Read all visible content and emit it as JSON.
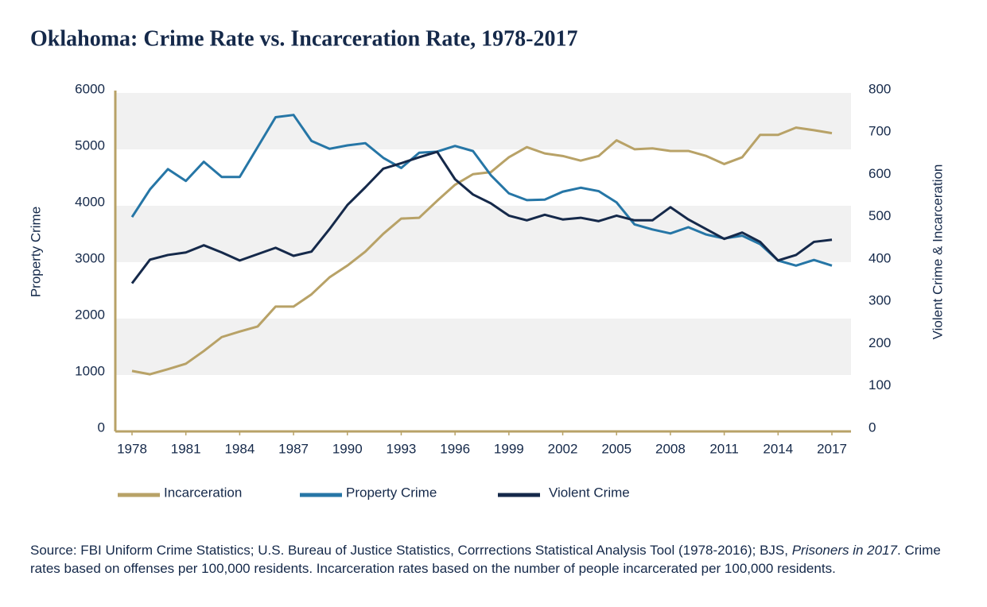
{
  "chart_data": {
    "type": "line",
    "title": "Oklahoma: Crime Rate vs. Incarceration Rate, 1978-2017",
    "y_label": "Property Crime",
    "y2_label": "Violent Crime & Incarceration",
    "x": [
      1978,
      1979,
      1980,
      1981,
      1982,
      1983,
      1984,
      1985,
      1986,
      1987,
      1988,
      1989,
      1990,
      1991,
      1992,
      1993,
      1994,
      1995,
      1996,
      1997,
      1998,
      1999,
      2000,
      2001,
      2002,
      2003,
      2004,
      2005,
      2006,
      2007,
      2008,
      2009,
      2010,
      2011,
      2012,
      2013,
      2014,
      2015,
      2016,
      2017
    ],
    "xlim": [
      1978,
      2017
    ],
    "xticks": [
      1978,
      1981,
      1984,
      1987,
      1990,
      1993,
      1996,
      1999,
      2002,
      2005,
      2008,
      2011,
      2014,
      2017
    ],
    "ylim": [
      0,
      6000
    ],
    "yticks": [
      0,
      1000,
      2000,
      3000,
      4000,
      5000,
      6000
    ],
    "y2lim": [
      0,
      800
    ],
    "y2ticks": [
      0,
      100,
      200,
      300,
      400,
      500,
      600,
      700,
      800
    ],
    "grid": "bands",
    "series": [
      {
        "name": "Incarceration",
        "color": "#b8a267",
        "axis": "y2",
        "values": [
          143,
          135,
          147,
          160,
          190,
          223,
          236,
          248,
          295,
          295,
          324,
          364,
          392,
          425,
          467,
          503,
          505,
          545,
          583,
          608,
          613,
          648,
          672,
          657,
          651,
          640,
          651,
          688,
          667,
          669,
          663,
          663,
          651,
          632,
          648,
          701,
          701,
          718,
          712,
          705
        ]
      },
      {
        "name": "Property Crime",
        "color": "#2676a6",
        "values": [
          3800,
          4290,
          4650,
          4440,
          4780,
          4510,
          4510,
          5040,
          5570,
          5610,
          5150,
          5010,
          5070,
          5110,
          4850,
          4670,
          4940,
          4960,
          5060,
          4970,
          4540,
          4220,
          4100,
          4110,
          4250,
          4320,
          4260,
          4060,
          3670,
          3580,
          3510,
          3620,
          3490,
          3420,
          3470,
          3320,
          3030,
          2940,
          3040,
          2940
        ]
      },
      {
        "name": "Violent Crime",
        "color": "#15294a",
        "axis": "y2",
        "values": [
          350,
          406,
          417,
          423,
          440,
          423,
          404,
          419,
          434,
          415,
          425,
          478,
          535,
          577,
          621,
          634,
          648,
          661,
          596,
          560,
          539,
          510,
          499,
          512,
          501,
          505,
          497,
          510,
          499,
          499,
          530,
          501,
          478,
          455,
          470,
          448,
          404,
          417,
          448,
          453
        ]
      }
    ],
    "source": [
      "Source: FBI Uniform Crime Statistics; U.S. Bureau of Justice Statistics, Corrrections Statistical Analysis Tool (1978-2016); BJS, ",
      "Prisoners in 2017",
      ". Crime rates based on offenses per 100,000 residents. Incarceration rates based on the number of people incarcerated per 100,000 residents."
    ]
  }
}
